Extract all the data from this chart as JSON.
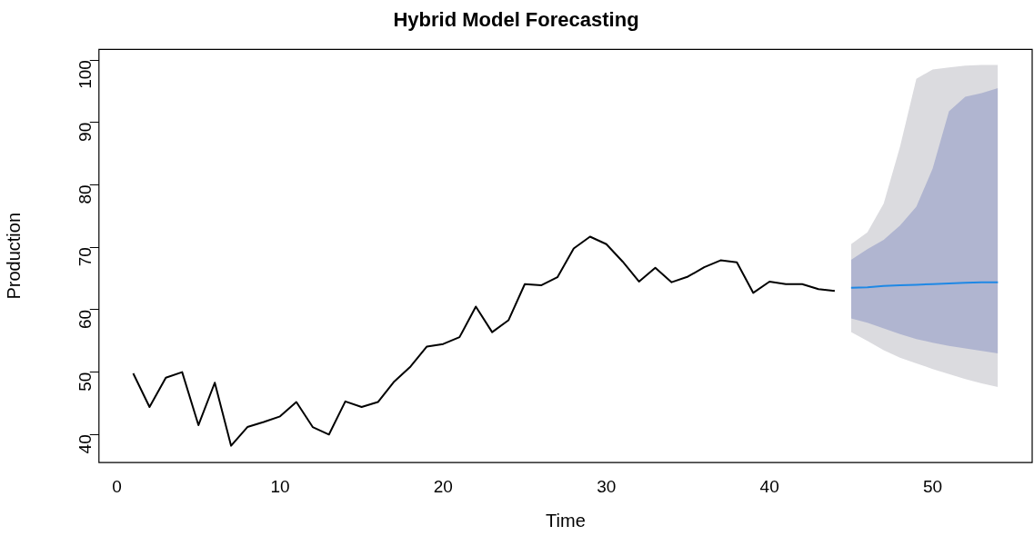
{
  "chart_data": {
    "type": "line",
    "title": "Hybrid Model Forecasting",
    "xlabel": "Time",
    "ylabel": "Production",
    "xlim": [
      -1.1,
      56.1
    ],
    "xticks": [
      0,
      10,
      20,
      30,
      40,
      50
    ],
    "ylim": [
      35.5,
      101.7
    ],
    "yticks": [
      40,
      50,
      60,
      70,
      80,
      90,
      100
    ],
    "grid": false,
    "legend": false,
    "marker": "none",
    "line_style": "solid",
    "series": [
      {
        "color": "#000000",
        "x": [
          1,
          2,
          3,
          4,
          5,
          6,
          7,
          8,
          9,
          10,
          11,
          12,
          13,
          14,
          15,
          16,
          17,
          18,
          19,
          20,
          21,
          22,
          23,
          24,
          25,
          26,
          27,
          28,
          29,
          30,
          31,
          32,
          33,
          34,
          35,
          36,
          37,
          38,
          39,
          40,
          41,
          42,
          43,
          44
        ],
        "values": [
          49.8,
          44.4,
          49.1,
          50.0,
          41.5,
          48.3,
          38.2,
          41.2,
          42.0,
          42.9,
          45.2,
          41.2,
          40.0,
          45.3,
          44.4,
          45.2,
          48.5,
          50.9,
          54.1,
          54.5,
          55.6,
          60.5,
          56.4,
          58.3,
          64.1,
          63.9,
          65.2,
          69.8,
          71.7,
          70.5,
          67.7,
          64.5,
          66.7,
          64.4,
          65.3,
          66.8,
          67.9,
          67.6,
          62.7,
          64.5,
          64.1,
          64.1,
          63.3,
          63.0
        ]
      },
      {
        "color": "#dbdbdf",
        "x": [
          45,
          46,
          47,
          48,
          49,
          50,
          51,
          52,
          53,
          54
        ],
        "values": [
          null,
          null,
          null,
          null,
          null,
          null,
          null,
          null,
          null,
          null
        ],
        "upper": [
          70.5,
          72.4,
          77.0,
          86.1,
          97.0,
          98.5,
          98.8,
          99.1,
          99.2,
          99.2
        ],
        "lower": [
          56.4,
          55.0,
          53.5,
          52.3,
          51.4,
          50.5,
          49.7,
          48.9,
          48.2,
          47.6
        ]
      },
      {
        "color": "#b0b5d0",
        "x": [
          45,
          46,
          47,
          48,
          49,
          50,
          51,
          52,
          53,
          54
        ],
        "values": [
          null,
          null,
          null,
          null,
          null,
          null,
          null,
          null,
          null,
          null
        ],
        "upper": [
          68.0,
          69.7,
          71.2,
          73.5,
          76.5,
          82.6,
          91.8,
          94.1,
          94.7,
          95.5
        ],
        "lower": [
          58.6,
          57.9,
          57.0,
          56.1,
          55.3,
          54.7,
          54.2,
          53.8,
          53.4,
          53.0
        ]
      },
      {
        "color": "#1e88e5",
        "x": [
          45,
          46,
          47,
          48,
          49,
          50,
          51,
          52,
          53,
          54
        ],
        "values": [
          63.5,
          63.6,
          63.8,
          63.9,
          64.0,
          64.1,
          64.2,
          64.3,
          64.4,
          64.4
        ]
      }
    ]
  }
}
